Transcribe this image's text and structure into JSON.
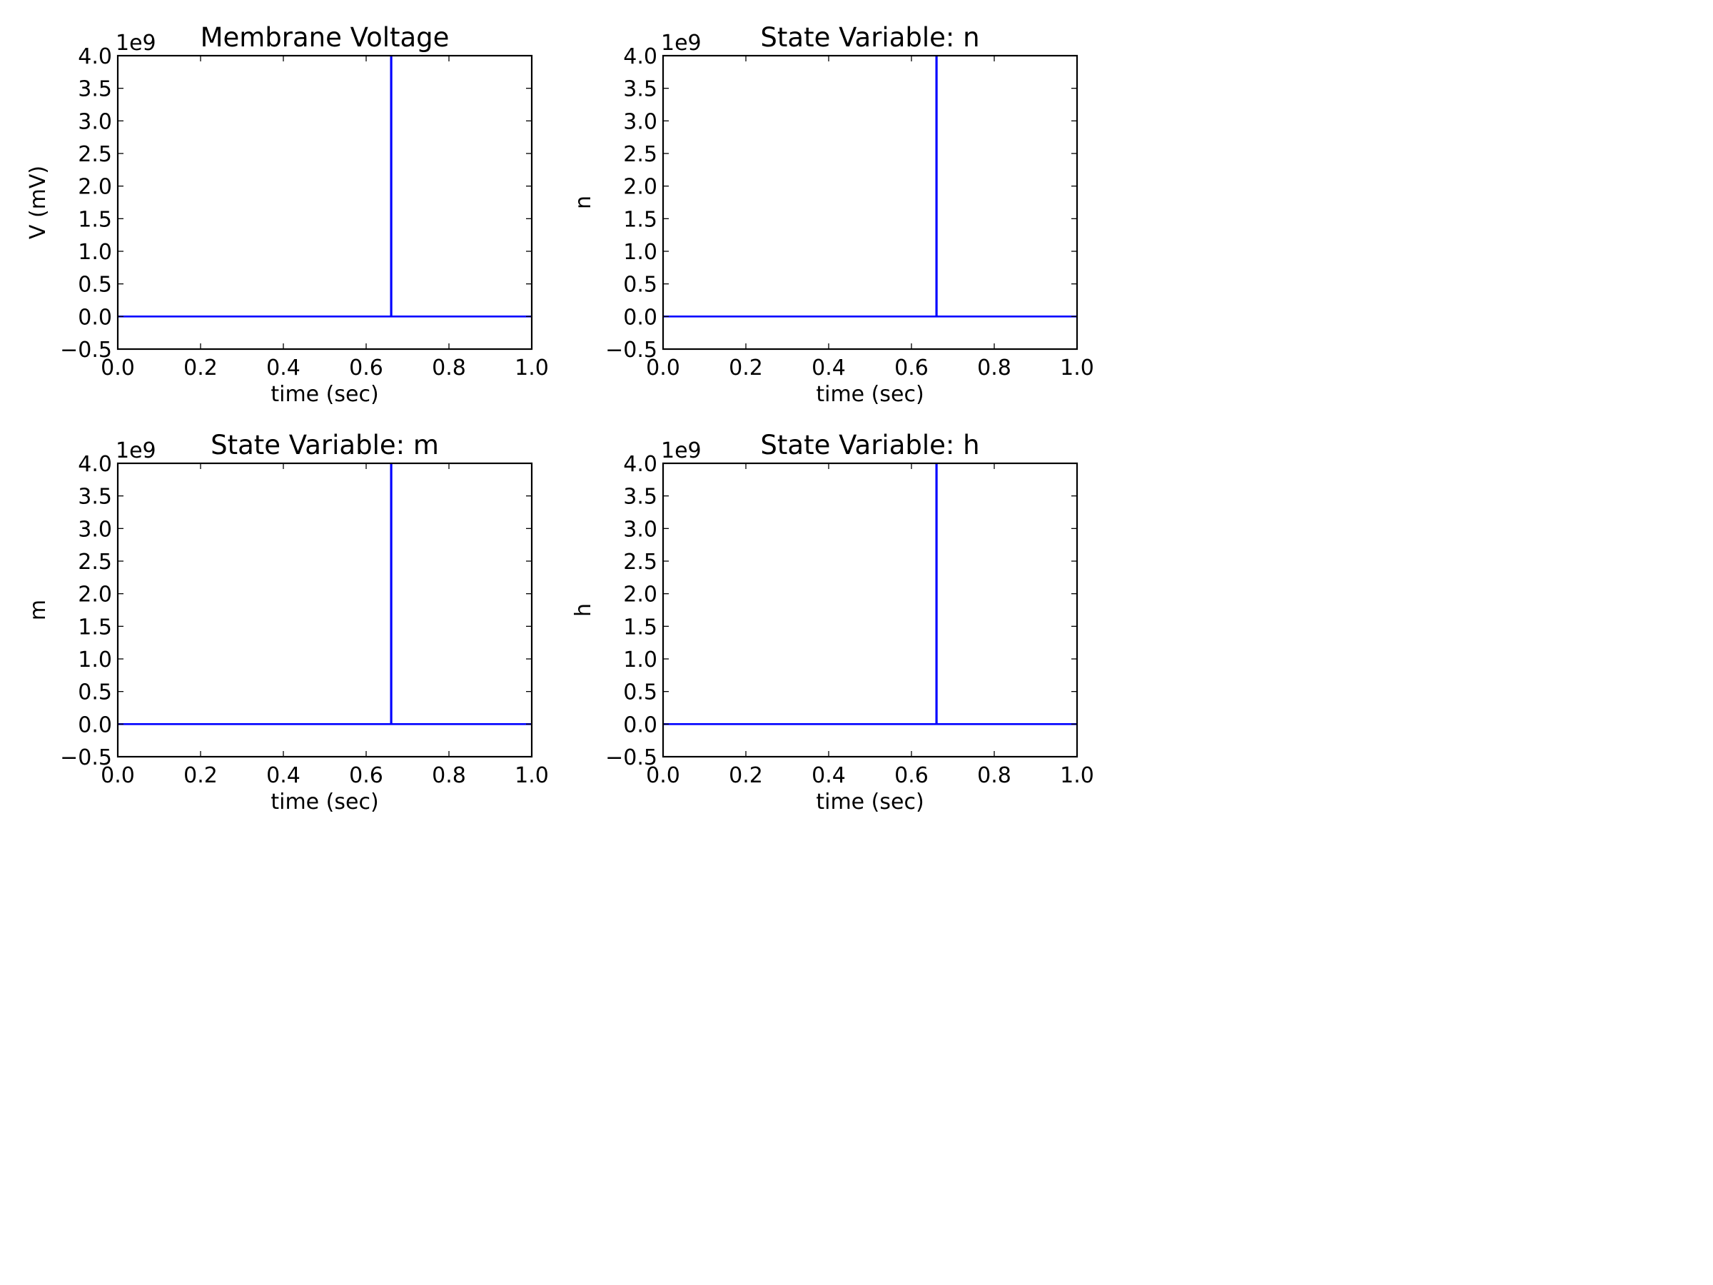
{
  "chart_data": [
    {
      "type": "line",
      "title": "Membrane Voltage",
      "xlabel": "time (sec)",
      "ylabel": "V (mV)",
      "offset_text": "1e9",
      "xlim": [
        0.0,
        1.0
      ],
      "ylim": [
        -0.5,
        4.0
      ],
      "x_ticks": [
        "0.0",
        "0.2",
        "0.4",
        "0.6",
        "0.8",
        "1.0"
      ],
      "y_ticks": [
        "4.0",
        "3.5",
        "3.0",
        "2.5",
        "2.0",
        "1.5",
        "1.0",
        "0.5",
        "0.0",
        "−0.5"
      ],
      "grid": false,
      "color": "#0000ff",
      "series": [
        {
          "x": [
            0.0,
            0.66,
            0.66,
            0.661,
            0.661,
            1.0
          ],
          "y": [
            0.0,
            0.0,
            4.0,
            4.0,
            0.0,
            0.0
          ]
        }
      ]
    },
    {
      "type": "line",
      "title": "State Variable: n",
      "xlabel": "time (sec)",
      "ylabel": "n",
      "offset_text": "1e9",
      "xlim": [
        0.0,
        1.0
      ],
      "ylim": [
        -0.5,
        4.0
      ],
      "x_ticks": [
        "0.0",
        "0.2",
        "0.4",
        "0.6",
        "0.8",
        "1.0"
      ],
      "y_ticks": [
        "4.0",
        "3.5",
        "3.0",
        "2.5",
        "2.0",
        "1.5",
        "1.0",
        "0.5",
        "0.0",
        "−0.5"
      ],
      "grid": false,
      "color": "#0000ff",
      "series": [
        {
          "x": [
            0.0,
            0.66,
            0.66,
            0.661,
            0.661,
            1.0
          ],
          "y": [
            0.0,
            0.0,
            4.0,
            4.0,
            0.0,
            0.0
          ]
        }
      ]
    },
    {
      "type": "line",
      "title": "State Variable: m",
      "xlabel": "time (sec)",
      "ylabel": "m",
      "offset_text": "1e9",
      "xlim": [
        0.0,
        1.0
      ],
      "ylim": [
        -0.5,
        4.0
      ],
      "x_ticks": [
        "0.0",
        "0.2",
        "0.4",
        "0.6",
        "0.8",
        "1.0"
      ],
      "y_ticks": [
        "4.0",
        "3.5",
        "3.0",
        "2.5",
        "2.0",
        "1.5",
        "1.0",
        "0.5",
        "0.0",
        "−0.5"
      ],
      "grid": false,
      "color": "#0000ff",
      "series": [
        {
          "x": [
            0.0,
            0.66,
            0.66,
            0.661,
            0.661,
            1.0
          ],
          "y": [
            0.0,
            0.0,
            4.0,
            4.0,
            0.0,
            0.0
          ]
        }
      ]
    },
    {
      "type": "line",
      "title": "State Variable: h",
      "xlabel": "time (sec)",
      "ylabel": "h",
      "offset_text": "1e9",
      "xlim": [
        0.0,
        1.0
      ],
      "ylim": [
        -0.5,
        4.0
      ],
      "x_ticks": [
        "0.0",
        "0.2",
        "0.4",
        "0.6",
        "0.8",
        "1.0"
      ],
      "y_ticks": [
        "4.0",
        "3.5",
        "3.0",
        "2.5",
        "2.0",
        "1.5",
        "1.0",
        "0.5",
        "0.0",
        "−0.5"
      ],
      "grid": false,
      "color": "#0000ff",
      "series": [
        {
          "x": [
            0.0,
            0.66,
            0.66,
            0.661,
            0.661,
            1.0
          ],
          "y": [
            0.0,
            0.0,
            4.0,
            4.0,
            0.0,
            0.0
          ]
        }
      ]
    }
  ]
}
